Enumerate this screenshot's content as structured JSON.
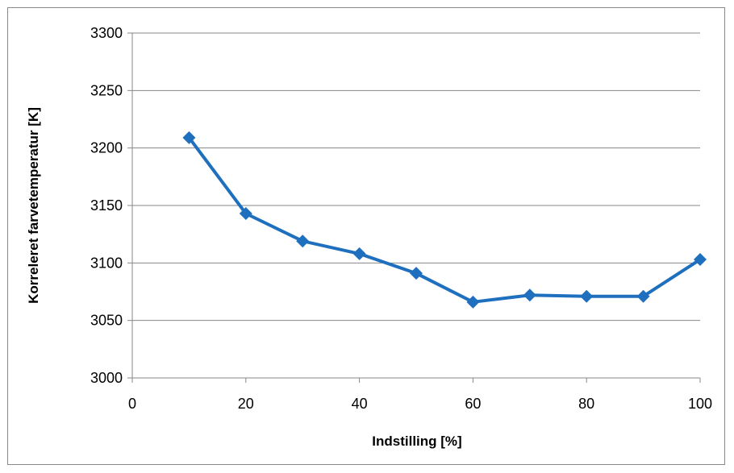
{
  "chart_data": {
    "type": "line",
    "xlabel": "Indstilling [%]",
    "ylabel": "Korreleret farvetemperatur [K]",
    "xlim": [
      0,
      100
    ],
    "ylim": [
      3000,
      3300
    ],
    "x_ticks": [
      0,
      20,
      40,
      60,
      80,
      100
    ],
    "y_ticks": [
      3000,
      3050,
      3100,
      3150,
      3200,
      3250,
      3300
    ],
    "grid": "horizontal",
    "legend": "none",
    "series": [
      {
        "color": "#1f6fbf",
        "marker": "diamond",
        "x": [
          10,
          20,
          30,
          40,
          50,
          60,
          70,
          80,
          90,
          100
        ],
        "y": [
          3209,
          3143,
          3119,
          3108,
          3091,
          3066,
          3072,
          3071,
          3071,
          3103
        ]
      }
    ]
  }
}
